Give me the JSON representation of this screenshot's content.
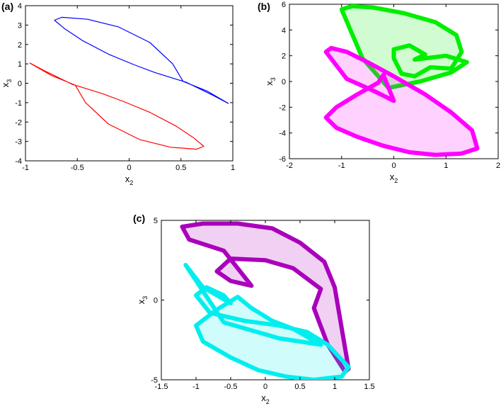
{
  "chart_data": [
    {
      "type": "line",
      "panel_label": "(a)",
      "xlabel": "x",
      "xlabel_sub": "2",
      "ylabel": "x",
      "ylabel_sub": "3",
      "xlim": [
        -1,
        1
      ],
      "ylim": [
        -4,
        4
      ],
      "xticks": [
        "-1",
        "-0.5",
        "0",
        "0.5",
        "1"
      ],
      "yticks": [
        "-4",
        "-3",
        "-2",
        "-1",
        "0",
        "1",
        "2",
        "3",
        "4"
      ],
      "series": [
        {
          "color": "#0000ff",
          "fill": false,
          "x": [
            0.96,
            0.8,
            0.55,
            0.4,
            0.25,
            0.05,
            -0.2,
            -0.45,
            -0.62,
            -0.72,
            -0.65,
            -0.4,
            -0.1,
            0.2,
            0.42,
            0.52,
            0.75,
            0.96
          ],
          "y": [
            -1.05,
            -0.6,
            0.05,
            0.3,
            0.55,
            0.95,
            1.5,
            2.2,
            2.8,
            3.25,
            3.4,
            3.3,
            2.9,
            2.1,
            1.0,
            0.1,
            -0.4,
            -1.05
          ]
        },
        {
          "color": "#ff0000",
          "fill": false,
          "x": [
            -0.96,
            -0.8,
            -0.55,
            -0.4,
            -0.25,
            -0.05,
            0.2,
            0.45,
            0.62,
            0.72,
            0.65,
            0.4,
            0.1,
            -0.2,
            -0.42,
            -0.52,
            -0.75,
            -0.96
          ],
          "y": [
            1.05,
            0.6,
            -0.05,
            -0.3,
            -0.55,
            -0.95,
            -1.5,
            -2.2,
            -2.8,
            -3.25,
            -3.4,
            -3.3,
            -2.9,
            -2.1,
            -1.0,
            -0.1,
            0.4,
            1.05
          ]
        }
      ]
    },
    {
      "type": "line",
      "panel_label": "(b)",
      "xlabel": "x",
      "xlabel_sub": "2",
      "ylabel": "x",
      "ylabel_sub": "3",
      "xlim": [
        -2,
        2
      ],
      "ylim": [
        -6,
        6
      ],
      "xticks": [
        "-2",
        "-1",
        "0",
        "1",
        "2"
      ],
      "yticks": [
        "-6",
        "-4",
        "-2",
        "0",
        "2",
        "4",
        "6"
      ],
      "series": [
        {
          "color": "#00ee00",
          "fill": true,
          "x": [
            -1.0,
            -0.8,
            -0.4,
            0.2,
            0.8,
            1.2,
            1.3,
            1.1,
            0.7,
            0.4,
            0.15,
            0.0,
            0.0,
            0.3,
            0.6,
            0.4,
            1.0,
            1.4,
            1.1,
            0.5,
            -0.1,
            -0.6,
            -1.0
          ],
          "y": [
            5.6,
            5.85,
            5.75,
            5.3,
            4.6,
            3.6,
            2.3,
            1.0,
            1.1,
            0.4,
            0.6,
            1.8,
            2.5,
            2.8,
            2.1,
            1.7,
            2.0,
            1.5,
            0.7,
            0.0,
            -0.5,
            1.8,
            5.6
          ]
        },
        {
          "color": "#ff00ff",
          "fill": true,
          "x": [
            -1.2,
            -0.9,
            -0.5,
            0.0,
            0.6,
            1.1,
            1.5,
            1.6,
            1.3,
            0.8,
            0.3,
            -0.2,
            -0.7,
            -1.1,
            -1.3,
            -1.1,
            -0.7,
            -0.3,
            -0.2,
            0.0,
            -0.4,
            -0.9,
            -1.3,
            -1.2
          ],
          "y": [
            2.6,
            2.3,
            1.5,
            0.4,
            -1.0,
            -2.4,
            -3.8,
            -5.2,
            -5.6,
            -5.7,
            -5.5,
            -5.0,
            -4.3,
            -3.6,
            -2.8,
            -2.0,
            -1.0,
            -0.1,
            0.5,
            -1.5,
            -0.7,
            0.2,
            2.3,
            2.6
          ]
        }
      ]
    },
    {
      "type": "line",
      "panel_label": "(c)",
      "xlabel": "x",
      "xlabel_sub": "2",
      "ylabel": "x",
      "ylabel_sub": "3",
      "xlim": [
        -1.5,
        1.5
      ],
      "ylim": [
        -5,
        5
      ],
      "xticks": [
        "-1.5",
        "-1",
        "-0.5",
        "0",
        "0.5",
        "1",
        "1.5"
      ],
      "yticks": [
        "-5",
        "0",
        "5"
      ],
      "series": [
        {
          "color": "#aa00bb",
          "fill": true,
          "x": [
            -1.2,
            -0.9,
            -0.4,
            0.1,
            0.5,
            0.85,
            1.0,
            1.2,
            1.15,
            0.9,
            0.7,
            0.8,
            0.4,
            0.0,
            -0.5,
            -0.7,
            -0.5,
            -0.2,
            -0.6,
            -1.1,
            -1.2
          ],
          "y": [
            4.6,
            4.8,
            4.8,
            4.5,
            3.6,
            2.4,
            0.8,
            -4.3,
            -4.5,
            -2.8,
            -0.5,
            0.7,
            2.0,
            2.5,
            2.6,
            1.8,
            1.2,
            0.9,
            3.1,
            3.8,
            4.6
          ]
        },
        {
          "color": "#00eeee",
          "fill": true,
          "x": [
            -1.15,
            -0.9,
            -0.5,
            -0.6,
            -0.85,
            -1.0,
            -0.8,
            -0.3,
            0.2,
            0.6,
            0.9,
            1.2,
            1.1,
            0.7,
            0.3,
            -0.1,
            -0.5,
            -0.9,
            -1.0,
            -0.7,
            -0.4,
            -0.2,
            0.1,
            0.4,
            0.8,
            0.2,
            -0.6,
            -1.15
          ],
          "y": [
            2.2,
            0.8,
            -0.2,
            0.3,
            0.8,
            0.3,
            -0.8,
            -1.3,
            -1.6,
            -2.0,
            -2.8,
            -4.2,
            -4.8,
            -5.0,
            -4.8,
            -4.4,
            -3.6,
            -2.6,
            -1.6,
            -0.6,
            0.2,
            -0.5,
            -1.3,
            -1.8,
            -2.8,
            -2.4,
            -1.4,
            2.2
          ]
        }
      ]
    }
  ]
}
